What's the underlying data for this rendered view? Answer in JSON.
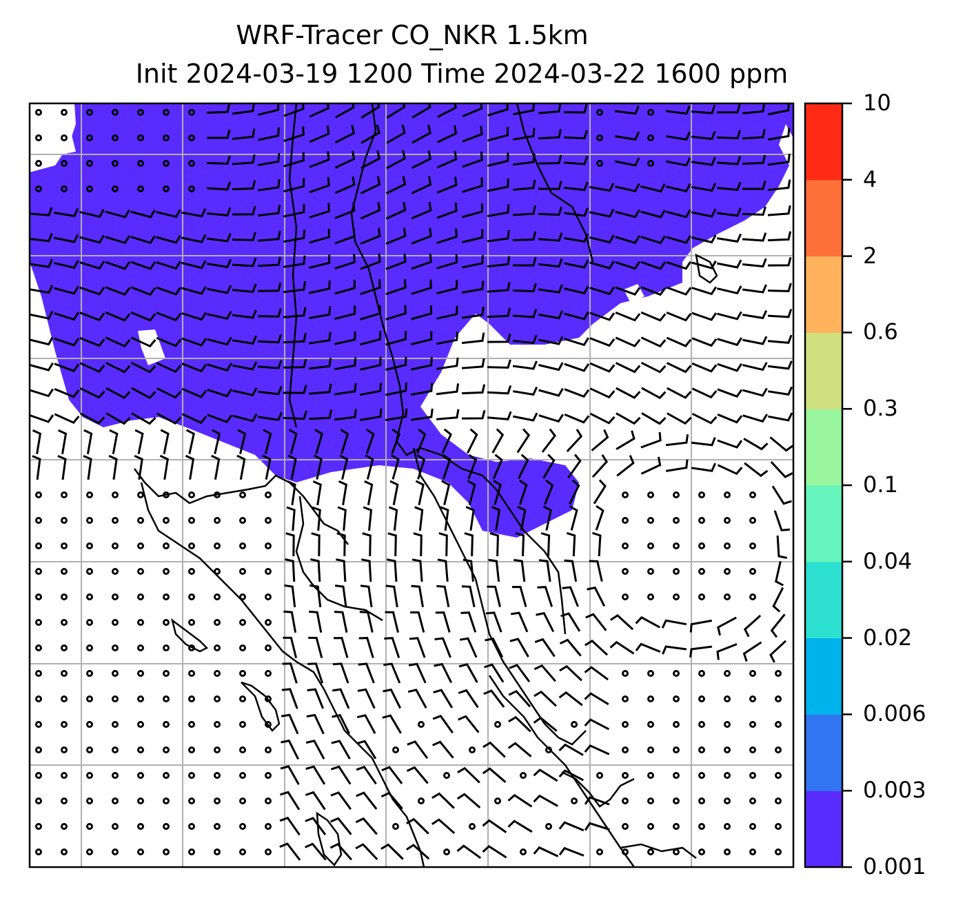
{
  "title": {
    "line1": "WRF-Tracer CO_NKR 1.5km",
    "line2": "Init 2024-03-19 1200 Time 2024-03-22 1600 ppm"
  },
  "colorbar": {
    "tick_labels": [
      "0.001",
      "0.003",
      "0.006",
      "0.02",
      "0.04",
      "0.1",
      "0.3",
      "0.6",
      "2",
      "4",
      "10"
    ],
    "colors": [
      "#5a2bff",
      "#3176f0",
      "#00b3ea",
      "#2ee0d0",
      "#66f5bd",
      "#99f59e",
      "#d1e07f",
      "#ffb25c",
      "#ff7038",
      "#ff2a14"
    ]
  },
  "map": {
    "plume_color": "#5a2bff",
    "coast_color": "#000000",
    "grid_color": "#b0b0b0"
  }
}
